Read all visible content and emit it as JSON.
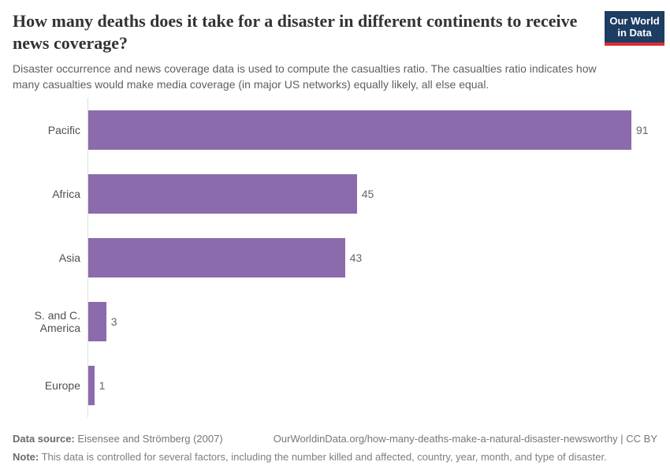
{
  "header": {
    "title": "How many deaths does it take for a disaster in different continents to receive news coverage?",
    "subtitle": "Disaster occurrence and news coverage data is used to compute the casualties ratio. The casualties ratio indicates how many casualties would make media coverage (in major US networks) equally likely, all else equal.",
    "logo": {
      "line1": "Our World",
      "line2": "in Data"
    }
  },
  "chart_data": {
    "type": "bar",
    "orientation": "horizontal",
    "title": "How many deaths does it take for a disaster in different continents to receive news coverage?",
    "categories": [
      "Pacific",
      "Africa",
      "Asia",
      "S. and C. America",
      "Europe"
    ],
    "values": [
      91,
      45,
      43,
      3,
      1
    ],
    "xlim": [
      0,
      91
    ],
    "grid": false,
    "show_value_labels": true,
    "bar_color": "#8c6bad"
  },
  "colors": {
    "bar": "#8c6bad",
    "logo_navy": "#1d3d63",
    "logo_red": "#dc2e33",
    "axis_line": "#dcdcdc"
  },
  "footer": {
    "datasource_label": "Data source:",
    "datasource_value": "Eisensee and Strömberg (2007)",
    "url": "OurWorldinData.org/how-many-deaths-make-a-natural-disaster-newsworthy | CC BY",
    "note_label": "Note:",
    "note_value": "This data is controlled for several factors, including the number killed and affected, country, year, month, and type of disaster."
  }
}
